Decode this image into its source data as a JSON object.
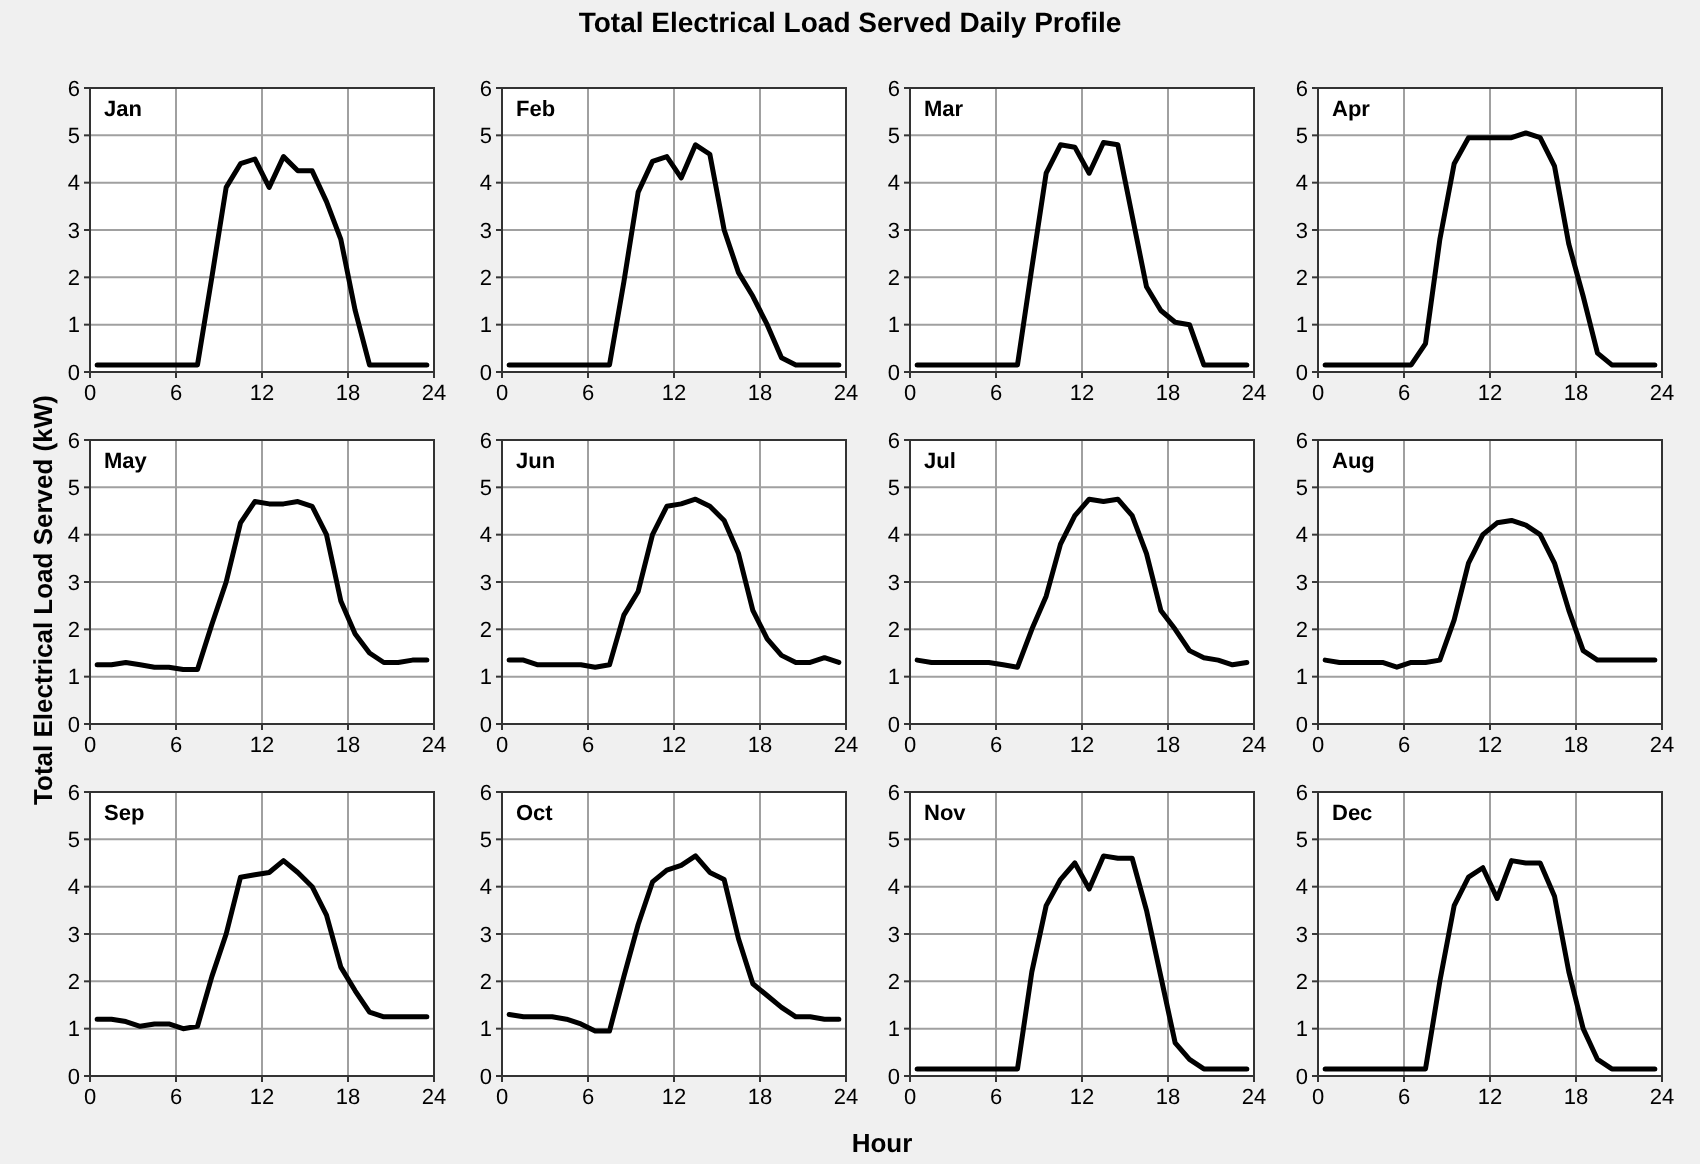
{
  "chart_data": [
    {
      "type": "other",
      "title": "Total Electrical Load Served Daily Profile",
      "xlabel": "Hour",
      "ylabel": "Total Electrical Load Served (kW)"
    },
    {
      "type": "line",
      "title": "Jan",
      "x": [
        0.5,
        1.5,
        2.5,
        3.5,
        4.5,
        5.5,
        6.5,
        7.5,
        8.5,
        9.5,
        10.5,
        11.5,
        12.5,
        13.5,
        14.5,
        15.5,
        16.5,
        17.5,
        18.5,
        19.5,
        20.5,
        21.5,
        22.5,
        23.5
      ],
      "series": [
        {
          "color": "#000000",
          "values": [
            0.15,
            0.15,
            0.15,
            0.15,
            0.15,
            0.15,
            0.15,
            0.15,
            2.0,
            3.9,
            4.4,
            4.5,
            3.9,
            4.55,
            4.25,
            4.25,
            3.6,
            2.8,
            1.3,
            0.15,
            0.15,
            0.15,
            0.15,
            0.15
          ]
        }
      ],
      "xlim": [
        0,
        24
      ],
      "ylim": [
        0,
        6
      ],
      "xticks": [
        0,
        6,
        12,
        18,
        24
      ],
      "yticks": [
        0,
        1,
        2,
        3,
        4,
        5,
        6
      ],
      "grid": true
    },
    {
      "type": "line",
      "title": "Feb",
      "x": [
        0.5,
        1.5,
        2.5,
        3.5,
        4.5,
        5.5,
        6.5,
        7.5,
        8.5,
        9.5,
        10.5,
        11.5,
        12.5,
        13.5,
        14.5,
        15.5,
        16.5,
        17.5,
        18.5,
        19.5,
        20.5,
        21.5,
        22.5,
        23.5
      ],
      "series": [
        {
          "color": "#000000",
          "values": [
            0.15,
            0.15,
            0.15,
            0.15,
            0.15,
            0.15,
            0.15,
            0.15,
            1.9,
            3.8,
            4.45,
            4.55,
            4.1,
            4.8,
            4.6,
            3.0,
            2.1,
            1.6,
            1.0,
            0.3,
            0.15,
            0.15,
            0.15,
            0.15
          ]
        }
      ],
      "xlim": [
        0,
        24
      ],
      "ylim": [
        0,
        6
      ],
      "xticks": [
        0,
        6,
        12,
        18,
        24
      ],
      "yticks": [
        0,
        1,
        2,
        3,
        4,
        5,
        6
      ],
      "grid": true
    },
    {
      "type": "line",
      "title": "Mar",
      "x": [
        0.5,
        1.5,
        2.5,
        3.5,
        4.5,
        5.5,
        6.5,
        7.5,
        8.5,
        9.5,
        10.5,
        11.5,
        12.5,
        13.5,
        14.5,
        15.5,
        16.5,
        17.5,
        18.5,
        19.5,
        20.5,
        21.5,
        22.5,
        23.5
      ],
      "series": [
        {
          "color": "#000000",
          "values": [
            0.15,
            0.15,
            0.15,
            0.15,
            0.15,
            0.15,
            0.15,
            0.15,
            2.2,
            4.2,
            4.8,
            4.75,
            4.2,
            4.85,
            4.8,
            3.3,
            1.8,
            1.3,
            1.05,
            1.0,
            0.15,
            0.15,
            0.15,
            0.15
          ]
        }
      ],
      "xlim": [
        0,
        24
      ],
      "ylim": [
        0,
        6
      ],
      "xticks": [
        0,
        6,
        12,
        18,
        24
      ],
      "yticks": [
        0,
        1,
        2,
        3,
        4,
        5,
        6
      ],
      "grid": true
    },
    {
      "type": "line",
      "title": "Apr",
      "x": [
        0.5,
        1.5,
        2.5,
        3.5,
        4.5,
        5.5,
        6.5,
        7.5,
        8.5,
        9.5,
        10.5,
        11.5,
        12.5,
        13.5,
        14.5,
        15.5,
        16.5,
        17.5,
        18.5,
        19.5,
        20.5,
        21.5,
        22.5,
        23.5
      ],
      "series": [
        {
          "color": "#000000",
          "values": [
            0.15,
            0.15,
            0.15,
            0.15,
            0.15,
            0.15,
            0.15,
            0.6,
            2.8,
            4.4,
            4.95,
            4.95,
            4.95,
            4.95,
            5.05,
            4.95,
            4.35,
            2.7,
            1.6,
            0.4,
            0.15,
            0.15,
            0.15,
            0.15
          ]
        }
      ],
      "xlim": [
        0,
        24
      ],
      "ylim": [
        0,
        6
      ],
      "xticks": [
        0,
        6,
        12,
        18,
        24
      ],
      "yticks": [
        0,
        1,
        2,
        3,
        4,
        5,
        6
      ],
      "grid": true
    },
    {
      "type": "line",
      "title": "May",
      "x": [
        0.5,
        1.5,
        2.5,
        3.5,
        4.5,
        5.5,
        6.5,
        7.5,
        8.5,
        9.5,
        10.5,
        11.5,
        12.5,
        13.5,
        14.5,
        15.5,
        16.5,
        17.5,
        18.5,
        19.5,
        20.5,
        21.5,
        22.5,
        23.5
      ],
      "series": [
        {
          "color": "#000000",
          "values": [
            1.25,
            1.25,
            1.3,
            1.25,
            1.2,
            1.2,
            1.15,
            1.15,
            2.1,
            3.0,
            4.25,
            4.7,
            4.65,
            4.65,
            4.7,
            4.6,
            4.0,
            2.6,
            1.9,
            1.5,
            1.3,
            1.3,
            1.35,
            1.35
          ]
        }
      ],
      "xlim": [
        0,
        24
      ],
      "ylim": [
        0,
        6
      ],
      "xticks": [
        0,
        6,
        12,
        18,
        24
      ],
      "yticks": [
        0,
        1,
        2,
        3,
        4,
        5,
        6
      ],
      "grid": true
    },
    {
      "type": "line",
      "title": "Jun",
      "x": [
        0.5,
        1.5,
        2.5,
        3.5,
        4.5,
        5.5,
        6.5,
        7.5,
        8.5,
        9.5,
        10.5,
        11.5,
        12.5,
        13.5,
        14.5,
        15.5,
        16.5,
        17.5,
        18.5,
        19.5,
        20.5,
        21.5,
        22.5,
        23.5
      ],
      "series": [
        {
          "color": "#000000",
          "values": [
            1.35,
            1.35,
            1.25,
            1.25,
            1.25,
            1.25,
            1.2,
            1.25,
            2.3,
            2.8,
            4.0,
            4.6,
            4.65,
            4.75,
            4.6,
            4.3,
            3.6,
            2.4,
            1.8,
            1.45,
            1.3,
            1.3,
            1.4,
            1.3
          ]
        }
      ],
      "xlim": [
        0,
        24
      ],
      "ylim": [
        0,
        6
      ],
      "xticks": [
        0,
        6,
        12,
        18,
        24
      ],
      "yticks": [
        0,
        1,
        2,
        3,
        4,
        5,
        6
      ],
      "grid": true
    },
    {
      "type": "line",
      "title": "Jul",
      "x": [
        0.5,
        1.5,
        2.5,
        3.5,
        4.5,
        5.5,
        6.5,
        7.5,
        8.5,
        9.5,
        10.5,
        11.5,
        12.5,
        13.5,
        14.5,
        15.5,
        16.5,
        17.5,
        18.5,
        19.5,
        20.5,
        21.5,
        22.5,
        23.5
      ],
      "series": [
        {
          "color": "#000000",
          "values": [
            1.35,
            1.3,
            1.3,
            1.3,
            1.3,
            1.3,
            1.25,
            1.2,
            2.0,
            2.7,
            3.8,
            4.4,
            4.75,
            4.7,
            4.75,
            4.4,
            3.6,
            2.4,
            2.0,
            1.55,
            1.4,
            1.35,
            1.25,
            1.3
          ]
        }
      ],
      "xlim": [
        0,
        24
      ],
      "ylim": [
        0,
        6
      ],
      "xticks": [
        0,
        6,
        12,
        18,
        24
      ],
      "yticks": [
        0,
        1,
        2,
        3,
        4,
        5,
        6
      ],
      "grid": true
    },
    {
      "type": "line",
      "title": "Aug",
      "x": [
        0.5,
        1.5,
        2.5,
        3.5,
        4.5,
        5.5,
        6.5,
        7.5,
        8.5,
        9.5,
        10.5,
        11.5,
        12.5,
        13.5,
        14.5,
        15.5,
        16.5,
        17.5,
        18.5,
        19.5,
        20.5,
        21.5,
        22.5,
        23.5
      ],
      "series": [
        {
          "color": "#000000",
          "values": [
            1.35,
            1.3,
            1.3,
            1.3,
            1.3,
            1.2,
            1.3,
            1.3,
            1.35,
            2.2,
            3.4,
            4.0,
            4.25,
            4.3,
            4.2,
            4.0,
            3.4,
            2.4,
            1.55,
            1.35,
            1.35,
            1.35,
            1.35,
            1.35
          ]
        }
      ],
      "xlim": [
        0,
        24
      ],
      "ylim": [
        0,
        6
      ],
      "xticks": [
        0,
        6,
        12,
        18,
        24
      ],
      "yticks": [
        0,
        1,
        2,
        3,
        4,
        5,
        6
      ],
      "grid": true
    },
    {
      "type": "line",
      "title": "Sep",
      "x": [
        0.5,
        1.5,
        2.5,
        3.5,
        4.5,
        5.5,
        6.5,
        7.5,
        8.5,
        9.5,
        10.5,
        11.5,
        12.5,
        13.5,
        14.5,
        15.5,
        16.5,
        17.5,
        18.5,
        19.5,
        20.5,
        21.5,
        22.5,
        23.5
      ],
      "series": [
        {
          "color": "#000000",
          "values": [
            1.2,
            1.2,
            1.15,
            1.05,
            1.1,
            1.1,
            1.0,
            1.05,
            2.1,
            3.0,
            4.2,
            4.25,
            4.3,
            4.55,
            4.3,
            4.0,
            3.4,
            2.3,
            1.8,
            1.35,
            1.25,
            1.25,
            1.25,
            1.25
          ]
        }
      ],
      "xlim": [
        0,
        24
      ],
      "ylim": [
        0,
        6
      ],
      "xticks": [
        0,
        6,
        12,
        18,
        24
      ],
      "yticks": [
        0,
        1,
        2,
        3,
        4,
        5,
        6
      ],
      "grid": true
    },
    {
      "type": "line",
      "title": "Oct",
      "x": [
        0.5,
        1.5,
        2.5,
        3.5,
        4.5,
        5.5,
        6.5,
        7.5,
        8.5,
        9.5,
        10.5,
        11.5,
        12.5,
        13.5,
        14.5,
        15.5,
        16.5,
        17.5,
        18.5,
        19.5,
        20.5,
        21.5,
        22.5,
        23.5
      ],
      "series": [
        {
          "color": "#000000",
          "values": [
            1.3,
            1.25,
            1.25,
            1.25,
            1.2,
            1.1,
            0.95,
            0.95,
            2.1,
            3.2,
            4.1,
            4.35,
            4.45,
            4.65,
            4.3,
            4.15,
            2.9,
            1.95,
            1.7,
            1.45,
            1.25,
            1.25,
            1.2,
            1.2
          ]
        }
      ],
      "xlim": [
        0,
        24
      ],
      "ylim": [
        0,
        6
      ],
      "xticks": [
        0,
        6,
        12,
        18,
        24
      ],
      "yticks": [
        0,
        1,
        2,
        3,
        4,
        5,
        6
      ],
      "grid": true
    },
    {
      "type": "line",
      "title": "Nov",
      "x": [
        0.5,
        1.5,
        2.5,
        3.5,
        4.5,
        5.5,
        6.5,
        7.5,
        8.5,
        9.5,
        10.5,
        11.5,
        12.5,
        13.5,
        14.5,
        15.5,
        16.5,
        17.5,
        18.5,
        19.5,
        20.5,
        21.5,
        22.5,
        23.5
      ],
      "series": [
        {
          "color": "#000000",
          "values": [
            0.15,
            0.15,
            0.15,
            0.15,
            0.15,
            0.15,
            0.15,
            0.15,
            2.2,
            3.6,
            4.15,
            4.5,
            3.95,
            4.65,
            4.6,
            4.6,
            3.5,
            2.1,
            0.7,
            0.35,
            0.15,
            0.15,
            0.15,
            0.15
          ]
        }
      ],
      "xlim": [
        0,
        24
      ],
      "ylim": [
        0,
        6
      ],
      "xticks": [
        0,
        6,
        12,
        18,
        24
      ],
      "yticks": [
        0,
        1,
        2,
        3,
        4,
        5,
        6
      ],
      "grid": true
    },
    {
      "type": "line",
      "title": "Dec",
      "x": [
        0.5,
        1.5,
        2.5,
        3.5,
        4.5,
        5.5,
        6.5,
        7.5,
        8.5,
        9.5,
        10.5,
        11.5,
        12.5,
        13.5,
        14.5,
        15.5,
        16.5,
        17.5,
        18.5,
        19.5,
        20.5,
        21.5,
        22.5,
        23.5
      ],
      "series": [
        {
          "color": "#000000",
          "values": [
            0.15,
            0.15,
            0.15,
            0.15,
            0.15,
            0.15,
            0.15,
            0.15,
            2.0,
            3.6,
            4.2,
            4.4,
            3.75,
            4.55,
            4.5,
            4.5,
            3.8,
            2.2,
            1.0,
            0.35,
            0.15,
            0.15,
            0.15,
            0.15
          ]
        }
      ],
      "xlim": [
        0,
        24
      ],
      "ylim": [
        0,
        6
      ],
      "xticks": [
        0,
        6,
        12,
        18,
        24
      ],
      "yticks": [
        0,
        1,
        2,
        3,
        4,
        5,
        6
      ],
      "grid": true
    }
  ]
}
